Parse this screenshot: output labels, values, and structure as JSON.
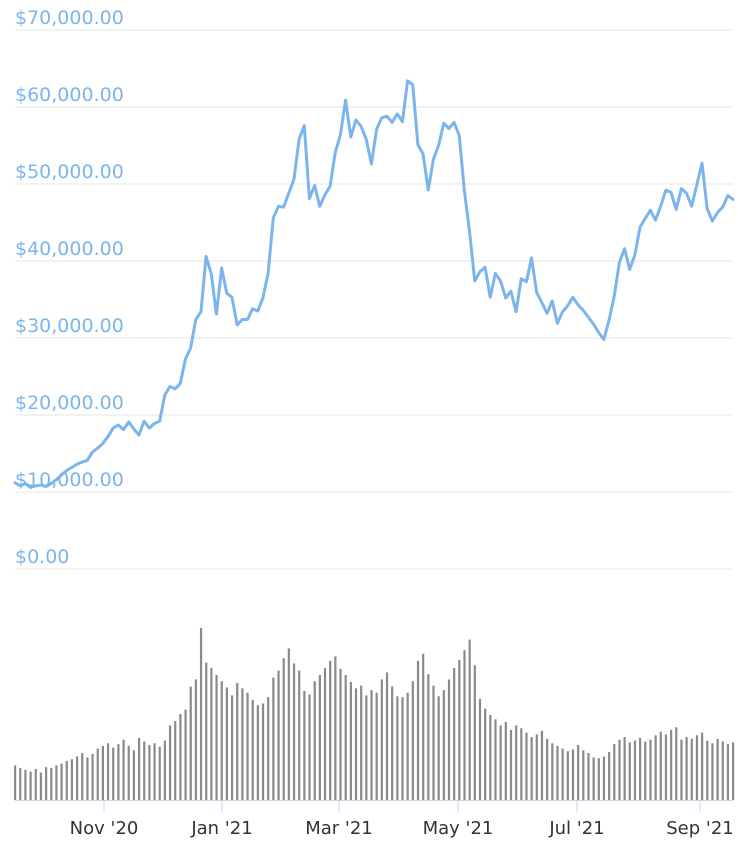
{
  "chart_data": {
    "type": "line",
    "title": "",
    "xlabel": "",
    "ylabel": "",
    "y_tick_labels": [
      "$0.00",
      "$10,000.00",
      "$20,000.00",
      "$30,000.00",
      "$40,000.00",
      "$50,000.00",
      "$60,000.00",
      "$70,000.00"
    ],
    "x_tick_labels": [
      "Nov '20",
      "Jan '21",
      "Mar '21",
      "May '21",
      "Jul '21",
      "Sep '21"
    ],
    "ylim": [
      0,
      70000
    ],
    "grid": true,
    "legend": "none",
    "colors": {
      "price_line": "#7cb5ec",
      "volume_bars": "#8a8a8a",
      "grid": "#e6e6e6",
      "axis": "#ccd6eb"
    },
    "series": [
      {
        "values": [
          11200,
          10800,
          11100,
          10600,
          10800,
          10900,
          10700,
          11100,
          11600,
          12200,
          12800,
          13200,
          13600,
          13900,
          14100,
          15200,
          15700,
          16300,
          17200,
          18300,
          18700,
          18100,
          19100,
          18200,
          17400,
          19200,
          18300,
          18900,
          19200,
          22600,
          23700,
          23400,
          24100,
          27300,
          28700,
          32400,
          33400,
          40600,
          38300,
          33100,
          39100,
          35800,
          35300,
          31700,
          32400,
          32400,
          33800,
          33500,
          35200,
          38400,
          45600,
          47100,
          47000,
          48800,
          50600,
          55800,
          57600,
          48100,
          49800,
          47100,
          48600,
          49700,
          54100,
          56400,
          60900,
          56100,
          58300,
          57500,
          55800,
          52600,
          57100,
          58600,
          58800,
          58000,
          59100,
          58100,
          63400,
          62900,
          55100,
          53900,
          49200,
          53200,
          55000,
          57900,
          57200,
          58000,
          56300,
          49100,
          43800,
          37400,
          38600,
          39200,
          35300,
          38400,
          37400,
          35200,
          36100,
          33400,
          37700,
          37300,
          40400,
          35900,
          34600,
          33200,
          34800,
          31900,
          33400,
          34200,
          35300,
          34300,
          33600,
          32700,
          31800,
          30700,
          29800,
          32300,
          35400,
          39800,
          41600,
          38900,
          40800,
          44400,
          45500,
          46600,
          45300,
          47100,
          49200,
          48900,
          46700,
          49400,
          48800,
          47100,
          49900,
          52700,
          46800,
          45200,
          46300,
          47000,
          48500,
          48000
        ],
        "volume": [
          3.9,
          3.6,
          3.4,
          3.2,
          3.5,
          3.1,
          3.7,
          3.6,
          3.9,
          4.1,
          4.4,
          4.6,
          4.9,
          5.3,
          4.8,
          5.2,
          5.8,
          6.1,
          6.4,
          5.9,
          6.3,
          6.8,
          6.1,
          5.6,
          7.0,
          6.6,
          6.2,
          6.4,
          6.0,
          6.7,
          8.4,
          8.9,
          9.7,
          10.2,
          12.8,
          13.6,
          19.4,
          15.5,
          14.9,
          14.1,
          13.4,
          12.7,
          11.8,
          13.2,
          12.6,
          12.1,
          11.3,
          10.7,
          10.9,
          11.6,
          13.8,
          14.6,
          16.0,
          17.1,
          15.4,
          14.6,
          12.3,
          11.9,
          13.4,
          14.1,
          14.9,
          15.7,
          16.2,
          14.8,
          14.1,
          13.3,
          12.6,
          12.9,
          11.8,
          12.4,
          12.1,
          13.6,
          14.4,
          12.8,
          11.7,
          11.6,
          12.1,
          13.4,
          15.7,
          16.5,
          14.2,
          12.9,
          11.7,
          12.4,
          13.6,
          14.9,
          15.8,
          16.9,
          18.1,
          15.2,
          11.4,
          10.3,
          9.6,
          9.1,
          8.4,
          8.8,
          7.9,
          8.4,
          8.1,
          7.6,
          7.1,
          7.4,
          7.8,
          6.9,
          6.4,
          6.1,
          5.8,
          5.5,
          5.7,
          6.2,
          5.6,
          5.3,
          4.8,
          4.7,
          4.9,
          5.4,
          6.3,
          6.8,
          7.1,
          6.5,
          6.7,
          7.0,
          6.6,
          6.8,
          7.3,
          7.7,
          7.4,
          7.9,
          8.2,
          6.8,
          7.1,
          6.9,
          7.3,
          7.6,
          6.7,
          6.4,
          6.9,
          6.6,
          6.3,
          6.5
        ]
      }
    ]
  }
}
